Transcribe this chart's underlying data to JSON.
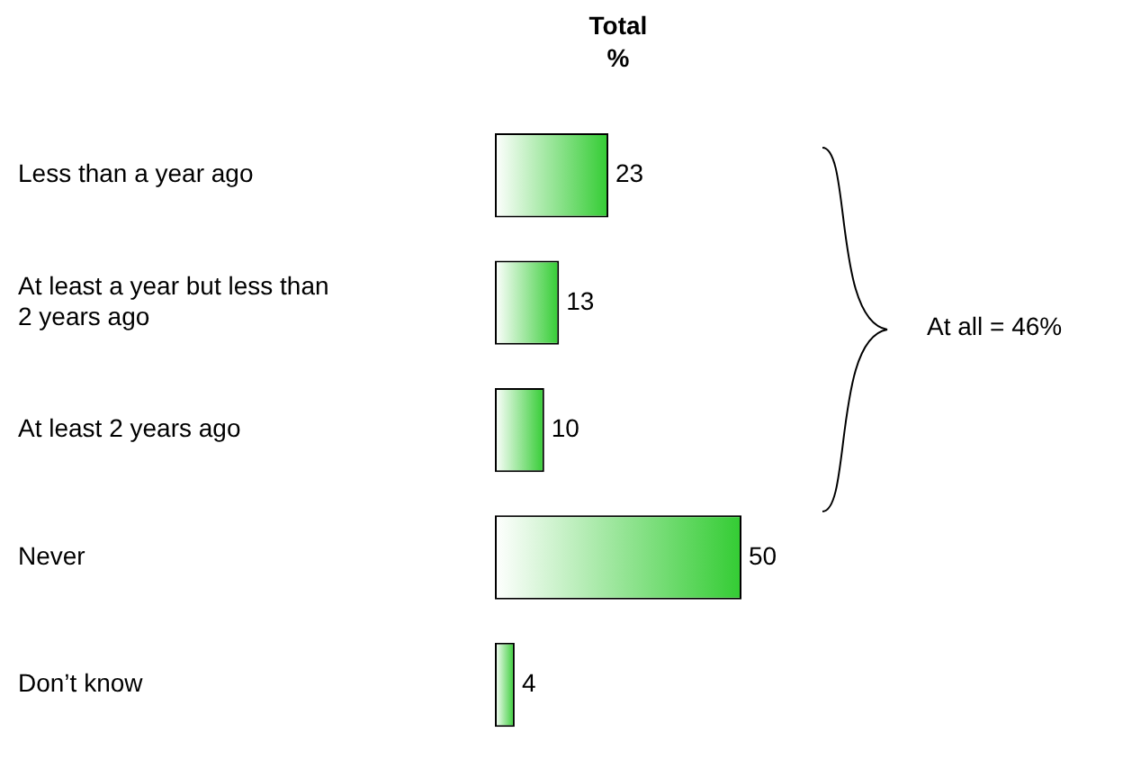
{
  "chart_data": {
    "type": "bar",
    "orientation": "horizontal",
    "title": "Total %",
    "categories": [
      "Less than a year ago",
      "At least a year but less than 2 years ago",
      "At least 2 years ago",
      "Never",
      "Don’t know"
    ],
    "values": [
      23,
      13,
      10,
      50,
      4
    ],
    "color": "#33cc33",
    "data_labels": true,
    "grid": false,
    "legend": false,
    "annotations": [
      "At all = 46%"
    ]
  }
}
